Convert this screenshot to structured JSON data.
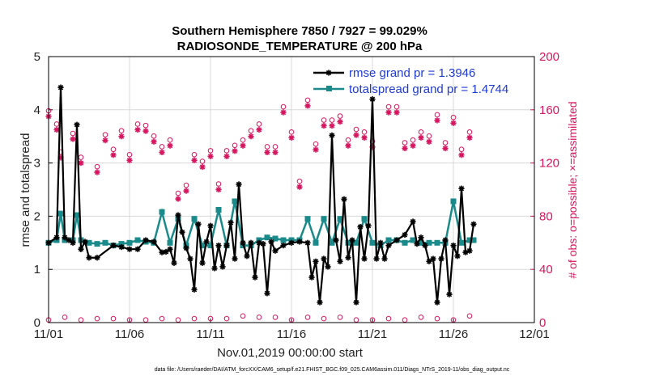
{
  "chart_data": {
    "type": "line",
    "title": "Southern Hemisphere 7850 / 7927 = 99.029%",
    "subtitle": "RADIOSONDE_TEMPERATURE @ 200 hPa",
    "xlabel": "Nov.01,2019 00:00:00 start",
    "ylabel": "rmse and totalspread",
    "ylabel_right": "# of obs: o=possible; ×=assimilated",
    "xlim": [
      0,
      30
    ],
    "ylim": [
      0,
      5
    ],
    "ylim_right": [
      0,
      200
    ],
    "x_ticks": [
      0,
      5,
      10,
      15,
      20,
      25,
      30
    ],
    "x_tick_labels": [
      "11/01",
      "11/06",
      "11/11",
      "11/16",
      "11/21",
      "11/26",
      "12/01"
    ],
    "y_ticks": [
      0,
      1,
      2,
      3,
      4,
      5
    ],
    "y_tick_labels": [
      "0",
      "1",
      "2",
      "3",
      "4",
      "5"
    ],
    "y_right_ticks": [
      0,
      40,
      80,
      120,
      160,
      200
    ],
    "y_right_tick_labels": [
      "0",
      "40",
      "80",
      "120",
      "160",
      "200"
    ],
    "grid": true,
    "legend_position": "top-right",
    "legend": [
      "rmse grand pr = 1.3946",
      "totalspread grand pr = 1.4744"
    ],
    "footnote": "data file: /Users/raeder/DAI/ATM_forcXX/CAM6_setup/f.e21.FHIST_BGC.f09_025.CAM6assim.011/Diags_NTrS_2019-11/obs_diag_output.nc",
    "colors": {
      "rmse": "#000000",
      "totalspread": "#1a8a8a",
      "obs": "#d6155f",
      "legend_text": "#1f3bd6",
      "grid": "#d8d8d8"
    },
    "series": [
      {
        "name": "rmse",
        "points": [
          [
            0,
            1.5
          ],
          [
            0.5,
            1.6
          ],
          [
            0.75,
            4.42
          ],
          [
            1,
            1.6
          ],
          [
            1.25,
            1.55
          ],
          [
            1.5,
            1.5
          ],
          [
            1.75,
            3.72
          ],
          [
            2,
            1.38
          ],
          [
            2.25,
            1.52
          ],
          [
            2.5,
            1.22
          ],
          [
            3,
            1.22
          ],
          [
            4,
            1.45
          ],
          [
            4.5,
            1.42
          ],
          [
            5,
            1.38
          ],
          [
            5.5,
            1.38
          ],
          [
            6,
            1.55
          ],
          [
            6.5,
            1.52
          ],
          [
            7,
            1.32
          ],
          [
            7.25,
            1.33
          ],
          [
            7.5,
            1.38
          ],
          [
            7.75,
            1.12
          ],
          [
            8,
            2.02
          ],
          [
            8.25,
            1.7
          ],
          [
            8.5,
            1.4
          ],
          [
            8.75,
            1.2
          ],
          [
            9,
            0.62
          ],
          [
            9.25,
            1.85
          ],
          [
            9.5,
            1.12
          ],
          [
            9.75,
            1.52
          ],
          [
            10,
            1.82
          ],
          [
            10.25,
            1.02
          ],
          [
            10.5,
            1.45
          ],
          [
            10.75,
            1.05
          ],
          [
            11,
            1.45
          ],
          [
            11.25,
            1.88
          ],
          [
            11.5,
            1.2
          ],
          [
            11.75,
            2.6
          ],
          [
            12,
            1.5
          ],
          [
            12.25,
            1.25
          ],
          [
            12.5,
            1.5
          ],
          [
            12.75,
            0.85
          ],
          [
            13,
            1.5
          ],
          [
            13.25,
            1.48
          ],
          [
            13.5,
            0.55
          ],
          [
            13.75,
            1.52
          ],
          [
            14,
            1.35
          ],
          [
            14.5,
            1.45
          ],
          [
            15,
            1.5
          ],
          [
            15.5,
            1.52
          ],
          [
            16,
            1.5
          ],
          [
            16.25,
            0.85
          ],
          [
            16.5,
            1.15
          ],
          [
            16.75,
            0.38
          ],
          [
            17,
            1.2
          ],
          [
            17.25,
            1.05
          ],
          [
            17.5,
            3.52
          ],
          [
            17.75,
            1.55
          ],
          [
            18,
            1.15
          ],
          [
            18.25,
            2.32
          ],
          [
            18.5,
            1.22
          ],
          [
            18.75,
            1.55
          ],
          [
            19,
            0.38
          ],
          [
            19.25,
            1.8
          ],
          [
            19.5,
            1.2
          ],
          [
            19.75,
            1.82
          ],
          [
            20,
            4.2
          ],
          [
            20.25,
            1.2
          ],
          [
            20.5,
            1.5
          ],
          [
            20.75,
            1.2
          ],
          [
            21,
            1.45
          ],
          [
            21.5,
            1.55
          ],
          [
            22,
            1.65
          ],
          [
            22.5,
            1.9
          ],
          [
            22.75,
            1.48
          ],
          [
            23,
            1.6
          ],
          [
            23.25,
            1.45
          ],
          [
            23.5,
            1.15
          ],
          [
            23.75,
            1.2
          ],
          [
            24,
            0.38
          ],
          [
            24.25,
            1.2
          ],
          [
            24.5,
            1.55
          ],
          [
            24.75,
            0.53
          ],
          [
            25,
            1.45
          ],
          [
            25.25,
            1.25
          ],
          [
            25.5,
            2.52
          ],
          [
            25.75,
            1.32
          ],
          [
            26,
            1.35
          ],
          [
            26.25,
            1.85
          ]
        ]
      },
      {
        "name": "totalspread",
        "points": [
          [
            0,
            1.5
          ],
          [
            0.5,
            1.55
          ],
          [
            0.75,
            2.05
          ],
          [
            1,
            1.55
          ],
          [
            1.5,
            1.55
          ],
          [
            1.75,
            2.02
          ],
          [
            2,
            1.55
          ],
          [
            2.5,
            1.5
          ],
          [
            3,
            1.48
          ],
          [
            3.5,
            1.5
          ],
          [
            4,
            1.45
          ],
          [
            4.5,
            1.48
          ],
          [
            5,
            1.5
          ],
          [
            5.5,
            1.55
          ],
          [
            6,
            1.52
          ],
          [
            6.5,
            1.5
          ],
          [
            7,
            2.08
          ],
          [
            7.5,
            1.5
          ],
          [
            8,
            1.95
          ],
          [
            8.5,
            1.45
          ],
          [
            9,
            1.95
          ],
          [
            9.5,
            1.45
          ],
          [
            10,
            1.45
          ],
          [
            10.5,
            2.12
          ],
          [
            11,
            1.45
          ],
          [
            11.5,
            2.28
          ],
          [
            12,
            1.45
          ],
          [
            12.5,
            1.45
          ],
          [
            13,
            1.55
          ],
          [
            13.5,
            1.6
          ],
          [
            14,
            1.58
          ],
          [
            14.5,
            1.55
          ],
          [
            15,
            1.55
          ],
          [
            15.5,
            1.55
          ],
          [
            16,
            1.95
          ],
          [
            16.5,
            1.5
          ],
          [
            17,
            1.95
          ],
          [
            17.5,
            1.5
          ],
          [
            18,
            1.95
          ],
          [
            18.5,
            1.5
          ],
          [
            19,
            1.5
          ],
          [
            19.5,
            1.95
          ],
          [
            20,
            1.5
          ],
          [
            20.5,
            1.45
          ],
          [
            21,
            1.55
          ],
          [
            21.5,
            1.55
          ],
          [
            22,
            1.5
          ],
          [
            22.5,
            1.55
          ],
          [
            23,
            1.5
          ],
          [
            23.5,
            1.5
          ],
          [
            24,
            1.5
          ],
          [
            24.5,
            1.5
          ],
          [
            25,
            2.28
          ],
          [
            25.5,
            1.5
          ],
          [
            26,
            1.55
          ],
          [
            26.25,
            1.55
          ]
        ]
      },
      {
        "name": "obs_possible",
        "axis": "right",
        "points": [
          [
            0,
            155
          ],
          [
            0.5,
            145
          ],
          [
            0.75,
            124
          ],
          [
            1.5,
            138
          ],
          [
            2,
            120
          ],
          [
            3,
            113
          ],
          [
            3.5,
            137
          ],
          [
            4,
            126
          ],
          [
            4.5,
            140
          ],
          [
            5,
            122
          ],
          [
            5.5,
            145
          ],
          [
            6,
            144
          ],
          [
            6.5,
            136
          ],
          [
            7,
            128
          ],
          [
            7.5,
            133
          ],
          [
            8,
            93
          ],
          [
            8.5,
            99
          ],
          [
            9,
            122
          ],
          [
            9.5,
            117
          ],
          [
            10,
            125
          ],
          [
            10.5,
            100
          ],
          [
            11,
            125
          ],
          [
            11.5,
            129
          ],
          [
            12,
            133
          ],
          [
            12.5,
            140
          ],
          [
            13,
            145
          ],
          [
            13.5,
            128
          ],
          [
            14,
            128
          ],
          [
            14.5,
            158
          ],
          [
            15,
            139
          ],
          [
            15.5,
            102
          ],
          [
            16,
            163
          ],
          [
            16.5,
            130
          ],
          [
            17,
            148
          ],
          [
            17.5,
            148
          ],
          [
            18,
            151
          ],
          [
            18.5,
            133
          ],
          [
            19,
            141
          ],
          [
            19.5,
            139
          ],
          [
            20,
            132
          ],
          [
            21,
            158
          ],
          [
            21.5,
            158
          ],
          [
            22,
            131
          ],
          [
            22.5,
            133
          ],
          [
            23,
            139
          ],
          [
            23.5,
            136
          ],
          [
            24,
            152
          ],
          [
            24.5,
            131
          ],
          [
            25,
            150
          ],
          [
            25.5,
            126
          ],
          [
            26,
            139
          ]
        ]
      },
      {
        "name": "obs_assimilated",
        "axis": "right",
        "points": [
          [
            0,
            155
          ],
          [
            0.5,
            145
          ],
          [
            0.75,
            124
          ],
          [
            1.5,
            138
          ],
          [
            2,
            120
          ],
          [
            3,
            113
          ],
          [
            3.5,
            137
          ],
          [
            4,
            126
          ],
          [
            4.5,
            140
          ],
          [
            5,
            122
          ],
          [
            5.5,
            145
          ],
          [
            6,
            144
          ],
          [
            6.5,
            136
          ],
          [
            7,
            128
          ],
          [
            7.5,
            133
          ],
          [
            8,
            93
          ],
          [
            8.5,
            99
          ],
          [
            9,
            122
          ],
          [
            9.5,
            117
          ],
          [
            10,
            125
          ],
          [
            10.5,
            100
          ],
          [
            11,
            125
          ],
          [
            11.5,
            129
          ],
          [
            12,
            133
          ],
          [
            12.5,
            140
          ],
          [
            13,
            145
          ],
          [
            13.5,
            128
          ],
          [
            14,
            128
          ],
          [
            14.5,
            158
          ],
          [
            15,
            139
          ],
          [
            15.5,
            102
          ],
          [
            16,
            163
          ],
          [
            16.5,
            130
          ],
          [
            17,
            148
          ],
          [
            17.5,
            148
          ],
          [
            18,
            151
          ],
          [
            18.5,
            133
          ],
          [
            19,
            141
          ],
          [
            19.5,
            139
          ],
          [
            20,
            132
          ],
          [
            21,
            158
          ],
          [
            21.5,
            158
          ],
          [
            22,
            131
          ],
          [
            22.5,
            133
          ],
          [
            23,
            139
          ],
          [
            23.5,
            136
          ],
          [
            24,
            152
          ],
          [
            24.5,
            131
          ],
          [
            25,
            150
          ],
          [
            25.5,
            126
          ],
          [
            26,
            139
          ]
        ]
      },
      {
        "name": "obs_possible_low",
        "axis": "right",
        "points": [
          [
            0,
            2
          ],
          [
            1,
            4
          ],
          [
            2,
            2
          ],
          [
            3,
            3
          ],
          [
            4,
            3
          ],
          [
            5,
            2
          ],
          [
            6,
            2
          ],
          [
            7,
            3
          ],
          [
            8,
            2
          ],
          [
            9,
            3
          ],
          [
            10,
            3
          ],
          [
            11,
            3
          ],
          [
            12,
            5
          ],
          [
            13,
            4
          ],
          [
            14,
            4
          ],
          [
            15,
            2
          ],
          [
            16,
            4
          ],
          [
            17,
            3
          ],
          [
            18,
            4
          ],
          [
            19,
            2
          ],
          [
            20,
            2
          ],
          [
            21,
            3
          ],
          [
            22,
            2
          ],
          [
            23,
            4
          ],
          [
            24,
            3
          ],
          [
            25,
            2
          ],
          [
            26,
            5
          ]
        ]
      }
    ]
  }
}
